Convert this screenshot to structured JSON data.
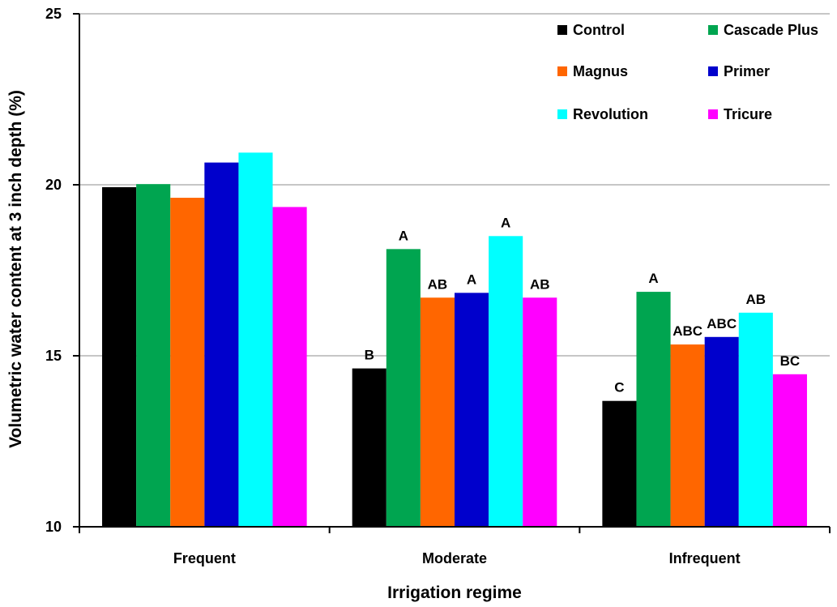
{
  "chart_data": {
    "type": "bar",
    "title": "",
    "xlabel": "Irrigation regime",
    "ylabel": "Volumetric water content at 3 inch depth (%)",
    "ylim": [
      10,
      25
    ],
    "yticks": [
      "10",
      "15",
      "20",
      "25"
    ],
    "grid": "horizontal",
    "legend_position": "top-right",
    "categories": [
      "Frequent",
      "Moderate",
      "Infrequent"
    ],
    "series": [
      {
        "name": "Control",
        "color": "#000000",
        "values": [
          19.93,
          14.63,
          13.68
        ],
        "labels": [
          "",
          "B",
          "C"
        ]
      },
      {
        "name": "Cascade Plus",
        "color": "#00A550",
        "values": [
          20.02,
          18.12,
          16.87
        ],
        "labels": [
          "",
          "A",
          "A"
        ]
      },
      {
        "name": "Magnus",
        "color": "#FF6600",
        "values": [
          19.62,
          16.7,
          15.33
        ],
        "labels": [
          "",
          "AB",
          "ABC"
        ]
      },
      {
        "name": "Primer",
        "color": "#0000CC",
        "values": [
          20.65,
          16.84,
          15.55
        ],
        "labels": [
          "",
          "A",
          "ABC"
        ]
      },
      {
        "name": "Revolution",
        "color": "#00FFFF",
        "values": [
          20.94,
          18.5,
          16.26
        ],
        "labels": [
          "",
          "A",
          "AB"
        ]
      },
      {
        "name": "Tricure",
        "color": "#FF00FF",
        "values": [
          19.35,
          16.7,
          14.46
        ],
        "labels": [
          "",
          "AB",
          "BC"
        ]
      }
    ]
  }
}
